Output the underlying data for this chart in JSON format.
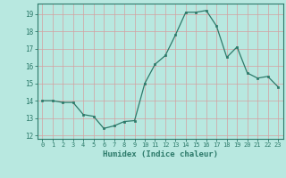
{
  "x": [
    0,
    1,
    2,
    3,
    4,
    5,
    6,
    7,
    8,
    9,
    10,
    11,
    12,
    13,
    14,
    15,
    16,
    17,
    18,
    19,
    20,
    21,
    22,
    23
  ],
  "y": [
    14.0,
    14.0,
    13.9,
    13.9,
    13.2,
    13.1,
    12.4,
    12.55,
    12.8,
    12.85,
    15.0,
    16.1,
    16.6,
    17.8,
    19.1,
    19.1,
    19.2,
    18.3,
    16.5,
    17.1,
    15.6,
    15.3,
    15.4,
    14.8
  ],
  "ylim": [
    11.8,
    19.6
  ],
  "yticks": [
    12,
    13,
    14,
    15,
    16,
    17,
    18,
    19
  ],
  "xlabel": "Humidex (Indice chaleur)",
  "line_color": "#2d7a6a",
  "marker_color": "#2d7a6a",
  "bg_color": "#b8e8e0",
  "grid_color_major": "#d4a0a0",
  "grid_color_minor": "#d8b8b8",
  "tick_label_color": "#2d7a6a",
  "xlabel_color": "#2d7a6a",
  "spine_color": "#2d7a6a"
}
